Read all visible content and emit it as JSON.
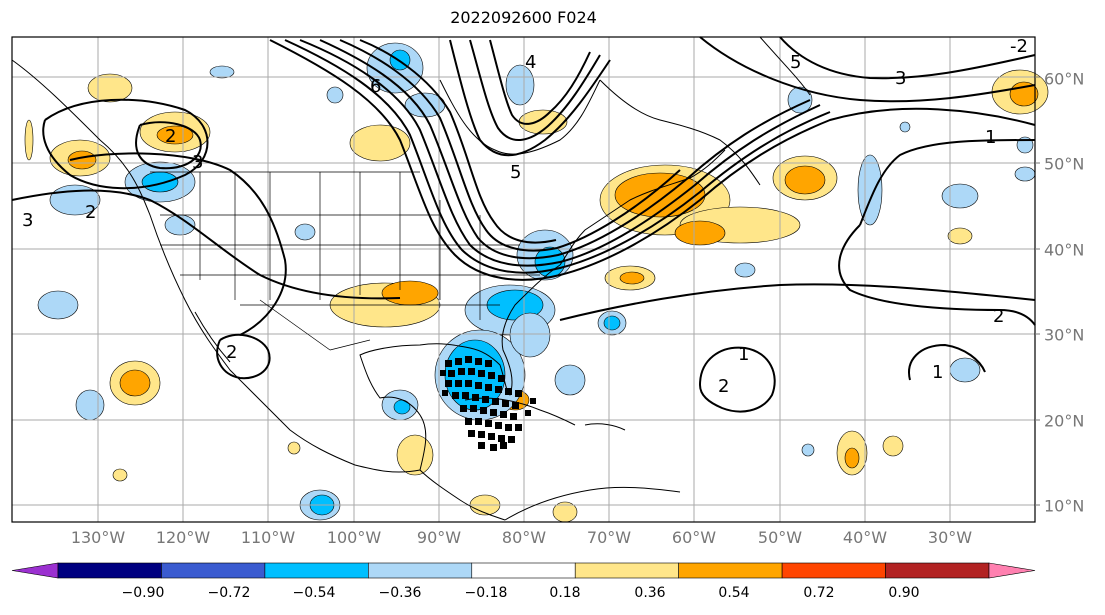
{
  "title": "2022092600 F024",
  "map": {
    "lon_labels": [
      "130°W",
      "120°W",
      "110°W",
      "100°W",
      "90°W",
      "80°W",
      "70°W",
      "60°W",
      "50°W",
      "40°W",
      "30°W"
    ],
    "lat_labels": [
      "60°N",
      "50°N",
      "40°N",
      "30°N",
      "20°N",
      "10°N"
    ],
    "contour_labels": [
      "6",
      "5",
      "4",
      "3",
      "2",
      "1",
      "5",
      "3",
      "2",
      "1",
      "3",
      "2",
      "2",
      "2",
      "1",
      "-2"
    ]
  },
  "colorbar": {
    "ticks": [
      "−0.90",
      "−0.72",
      "−0.54",
      "−0.36",
      "−0.18",
      "0.18",
      "0.36",
      "0.54",
      "0.72",
      "0.90"
    ],
    "colors": [
      "#9b30d0",
      "#000080",
      "#3a5bd0",
      "#00bfff",
      "#add8f7",
      "#ffffff",
      "#ffe68a",
      "#ffa500",
      "#ff4500",
      "#b22222",
      "#ff80b0"
    ]
  }
}
